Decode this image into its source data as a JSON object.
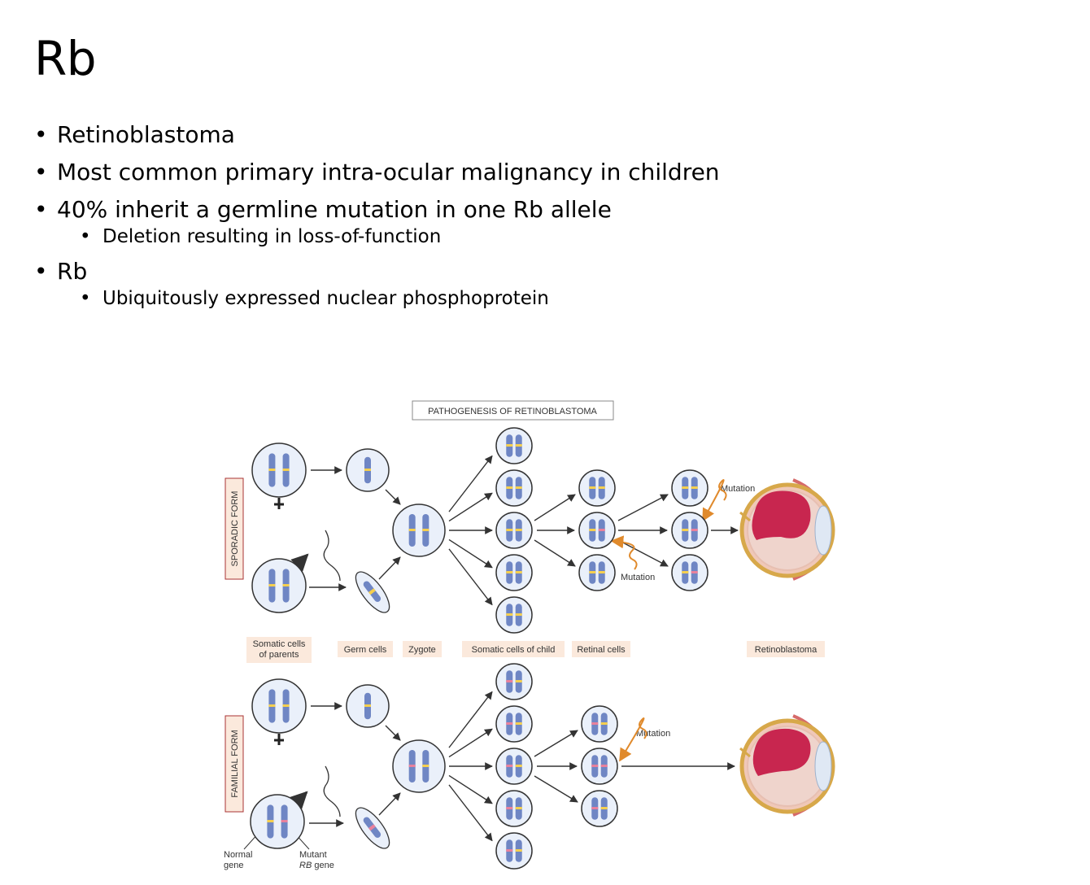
{
  "title": "Rb",
  "bullets": {
    "b1": "Retinoblastoma",
    "b2": "Most common primary intra-ocular malignancy in children",
    "b3": "40% inherit a germline mutation in one Rb allele",
    "b3_sub": "Deletion resulting in loss-of-function",
    "b4": "Rb",
    "b4_sub": "Ubiquitously expressed nuclear phosphoprotein"
  },
  "diagram": {
    "heading": "PATHOGENESIS OF RETINOBLASTOMA",
    "sporadic_label": "SPORADIC FORM",
    "familial_label": "FAMILIAL FORM",
    "stage_somatic_parents_1": "Somatic cells",
    "stage_somatic_parents_2": "of parents",
    "stage_germ": "Germ cells",
    "stage_zygote": "Zygote",
    "stage_somatic_child": "Somatic cells of child",
    "stage_retinal": "Retinal cells",
    "stage_retinoblastoma": "Retinoblastoma",
    "mutation_label": "Mutation",
    "normal_gene_1": "Normal",
    "normal_gene_2": "gene",
    "mutant_gene_1": "Mutant",
    "mutant_gene_2a": "RB",
    "mutant_gene_2b": " gene",
    "colors": {
      "chromosome": "#6f86c4",
      "normal_band": "#f5cf4e",
      "mutant_band": "#e8809c",
      "cell_fill": "#eaf0fa",
      "label_bg": "#fbe9dc",
      "tumor": "#c8264f"
    }
  }
}
